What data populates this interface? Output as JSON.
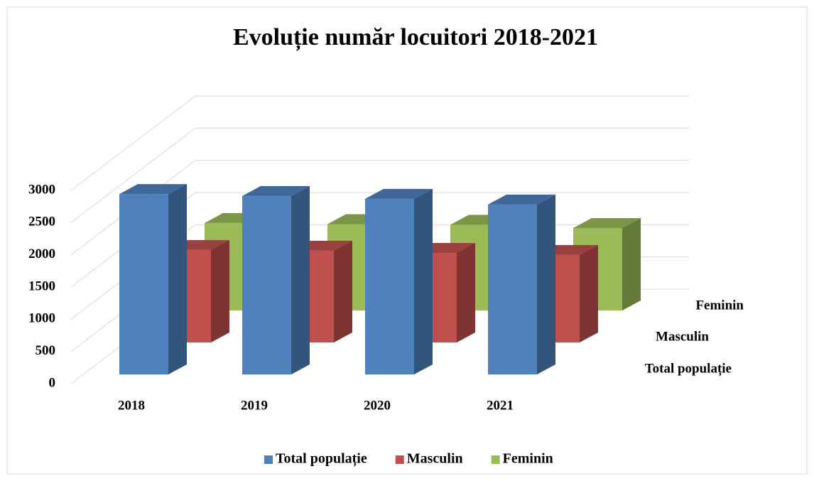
{
  "chart_data": {
    "type": "bar3d",
    "title": "Evoluție număr locuitori 2018-2021",
    "categories": [
      "2018",
      "2019",
      "2020",
      "2021"
    ],
    "series": [
      {
        "name": "Total populație",
        "color": "#4f81bd",
        "values": [
          2800,
          2770,
          2726,
          2638
        ]
      },
      {
        "name": "Masculin",
        "color": "#c0504d",
        "values": [
          1435,
          1424,
          1390,
          1358
        ]
      },
      {
        "name": "Feminin",
        "color": "#9bbb59",
        "values": [
          1358,
          1340,
          1330,
          1280
        ]
      }
    ],
    "ylim": [
      0,
      3000
    ],
    "yticks": [
      0,
      500,
      1000,
      1500,
      2000,
      2500,
      3000
    ],
    "grid": true,
    "legend": "bottom"
  }
}
